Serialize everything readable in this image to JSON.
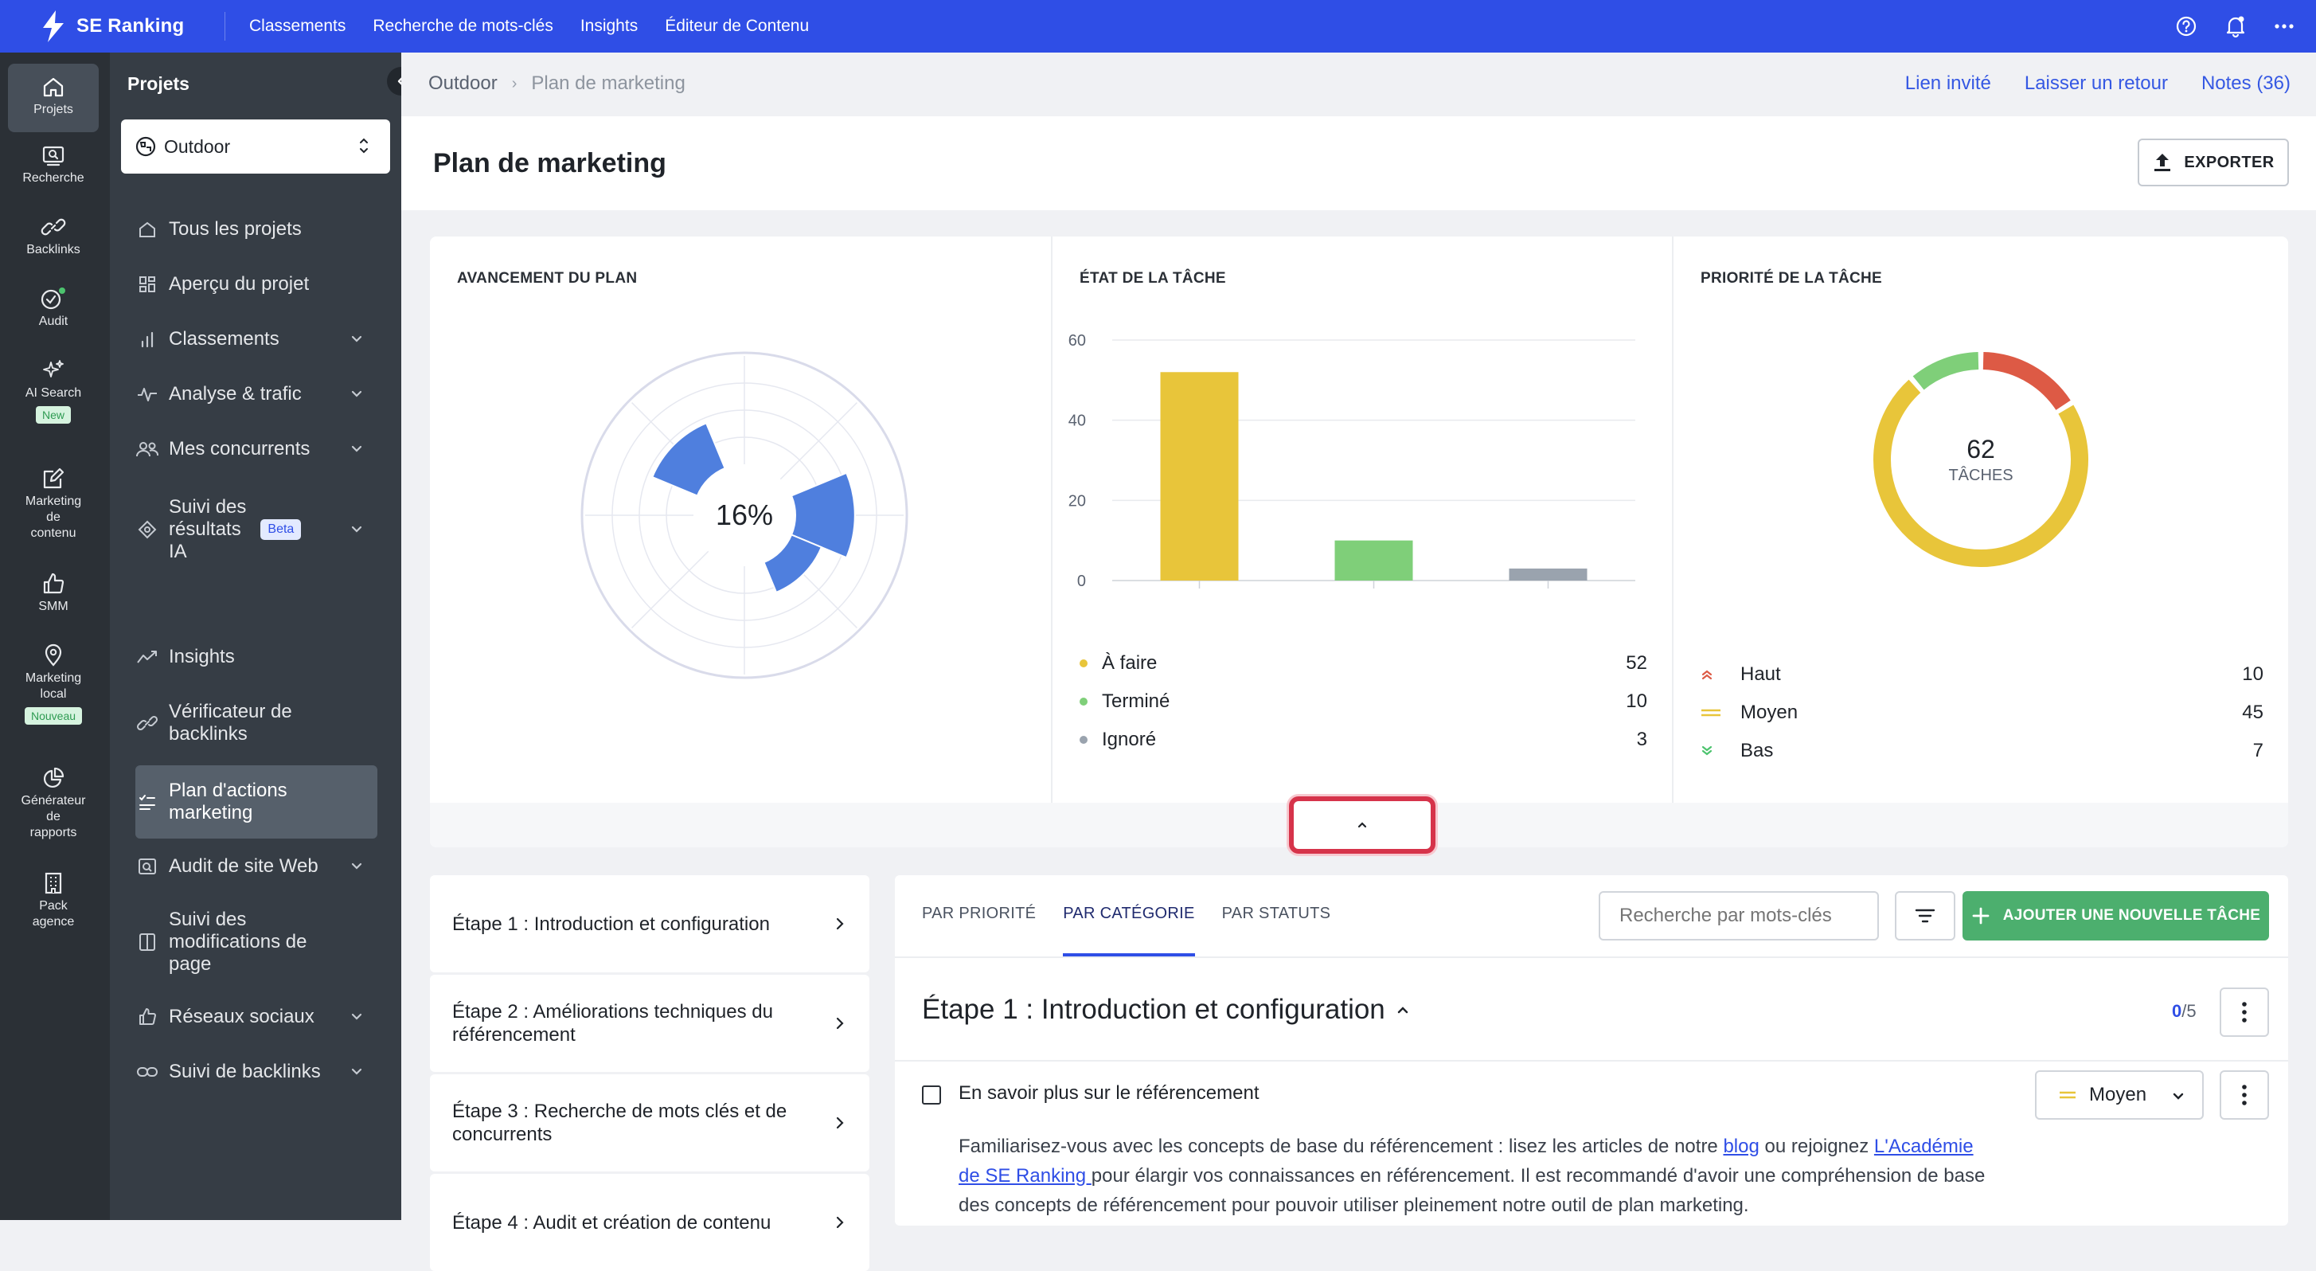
{
  "app": {
    "logo": "SE Ranking",
    "nav": [
      "Classements",
      "Recherche de mots-clés",
      "Insights",
      "Éditeur de Contenu"
    ]
  },
  "rail": {
    "projets": "Projets",
    "recherche": "Recherche",
    "backlinks": "Backlinks",
    "audit": "Audit",
    "ai_search": "AI Search",
    "ai_badge": "New",
    "marketing_contenu": [
      "Marketing",
      "de",
      "contenu"
    ],
    "smm": "SMM",
    "marketing_local": [
      "Marketing",
      "local"
    ],
    "local_badge": "Nouveau",
    "generateur": [
      "Générateur",
      "de",
      "rapports"
    ],
    "pack": [
      "Pack",
      "agence"
    ]
  },
  "sidebar": {
    "title": "Projets",
    "project": "Outdoor",
    "items": {
      "tous": "Tous les projets",
      "apercu": "Aperçu du projet",
      "classements": "Classements",
      "analyse": "Analyse & trafic",
      "concurrents": "Mes concurrents",
      "suivi_ia": [
        "Suivi des",
        "résultats",
        "IA"
      ],
      "beta": "Beta",
      "insights": "Insights",
      "verif": [
        "Vérificateur de",
        "backlinks"
      ],
      "plan": [
        "Plan d'actions",
        "marketing"
      ],
      "audit_site": "Audit de site Web",
      "suivi_modif": [
        "Suivi des",
        "modifications de",
        "page"
      ],
      "reseaux": "Réseaux sociaux",
      "suivi_backlinks": "Suivi de backlinks"
    }
  },
  "breadcrumb": {
    "root": "Outdoor",
    "current": "Plan de marketing"
  },
  "header_links": {
    "guest": "Lien invité",
    "feedback": "Laisser un retour",
    "notes": "Notes (36)"
  },
  "page": {
    "title": "Plan de marketing",
    "export": "EXPORTER"
  },
  "stats": {
    "progress_title": "AVANCEMENT DU PLAN",
    "progress_value": "16%",
    "progress_segments": [
      0.45,
      0.2,
      0.7,
      0.55,
      0.3,
      0.22,
      0.25,
      0.3
    ],
    "status_title": "ÉTAT DE LA TÂCHE",
    "priority_title": "PRIORITÉ DE LA TÂCHE",
    "total": "62",
    "total_label": "TÂCHES"
  },
  "chart_data": [
    {
      "type": "bar",
      "title": "ÉTAT DE LA TÂCHE",
      "categories": [
        "À faire",
        "Terminé",
        "Ignoré"
      ],
      "values": [
        52,
        10,
        3
      ],
      "colors": [
        "#e8c53a",
        "#7fcf79",
        "#9aa3ae"
      ],
      "ylim": [
        0,
        60
      ],
      "yticks": [
        0,
        20,
        40,
        60
      ],
      "grid": true,
      "legend_display": [
        "52",
        "10",
        "3"
      ]
    },
    {
      "type": "pie",
      "title": "PRIORITÉ DE LA TÂCHE",
      "categories": [
        "Haut",
        "Moyen",
        "Bas"
      ],
      "values": [
        10,
        45,
        7
      ],
      "colors": [
        "#dd5a45",
        "#e8c53a",
        "#7fcf79"
      ],
      "legend_display": [
        "10",
        "45",
        "7"
      ]
    }
  ],
  "steps": [
    [
      "Étape 1 : Introduction et configuration"
    ],
    [
      "Étape 2 : Améliorations techniques du",
      "référencement"
    ],
    [
      "Étape 3 : Recherche de mots clés et de",
      "concurrents"
    ],
    [
      "Étape 4 : Audit et création de contenu"
    ]
  ],
  "tasks": {
    "tabs": [
      "PAR PRIORITÉ",
      "PAR CATÉGORIE",
      "PAR STATUTS"
    ],
    "search_placeholder": "Recherche par mots-clés",
    "add": "AJOUTER UNE NOUVELLE TÂCHE",
    "section_title": "Étape 1 : Introduction et configuration",
    "done": "0",
    "total": "/5",
    "task_title": "En savoir plus sur le référencement",
    "priority": "Moyen",
    "desc": {
      "p1": "Familiarisez-vous avec les concepts de base du référencement : lisez les articles de notre ",
      "blog": "blog",
      "p2": " ou rejoignez ",
      "academy_1": "L'Académie",
      "academy_2": "de SE Ranking ",
      "p3": "pour élargir vos connaissances en référencement. Il est recommandé d'avoir une compréhension de base",
      "p4": "des concepts de référencement pour pouvoir utiliser pleinement notre outil de plan marketing."
    }
  }
}
